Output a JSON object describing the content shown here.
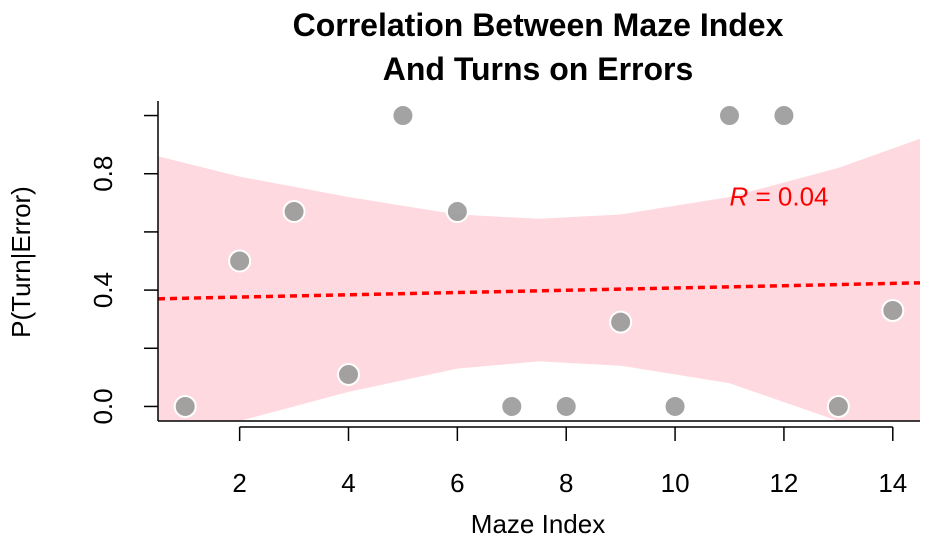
{
  "chart_data": {
    "type": "scatter",
    "title_lines": [
      "Correlation Between Maze Index",
      "And Turns on Errors"
    ],
    "xlabel": "Maze Index",
    "ylabel": "P(Turn|Error)",
    "xlim": [
      0.5,
      14.5
    ],
    "ylim": [
      -0.05,
      1.05
    ],
    "x_ticks": [
      2,
      4,
      6,
      8,
      10,
      12,
      14
    ],
    "x_tick_labels": [
      "2",
      "4",
      "6",
      "8",
      "10",
      "12",
      "14"
    ],
    "y_ticks": [
      0.0,
      0.2,
      0.4,
      0.6,
      0.8,
      1.0
    ],
    "y_labeled_ticks": [
      0.0,
      0.4,
      0.8
    ],
    "y_tick_labels": [
      "0.0",
      "0.4",
      "0.8"
    ],
    "grid": false,
    "points": [
      {
        "x": 1,
        "y": 0.0
      },
      {
        "x": 2,
        "y": 0.5
      },
      {
        "x": 3,
        "y": 0.67
      },
      {
        "x": 4,
        "y": 0.11
      },
      {
        "x": 5,
        "y": 1.0
      },
      {
        "x": 6,
        "y": 0.67
      },
      {
        "x": 7,
        "y": 0.0
      },
      {
        "x": 8,
        "y": 0.0
      },
      {
        "x": 9,
        "y": 0.29
      },
      {
        "x": 10,
        "y": 0.0
      },
      {
        "x": 11,
        "y": 1.0
      },
      {
        "x": 12,
        "y": 1.0
      },
      {
        "x": 13,
        "y": 0.0
      },
      {
        "x": 14,
        "y": 0.33
      }
    ],
    "fit_line": {
      "x": [
        0.5,
        14.5
      ],
      "y": [
        0.37,
        0.425
      ]
    },
    "confidence_band": {
      "x": [
        0.5,
        2,
        4,
        6,
        7.5,
        9,
        11,
        13,
        14.5
      ],
      "upper": [
        0.86,
        0.79,
        0.72,
        0.66,
        0.645,
        0.66,
        0.72,
        0.82,
        0.92
      ],
      "lower": [
        -0.05,
        -0.05,
        0.05,
        0.13,
        0.155,
        0.14,
        0.08,
        -0.05,
        -0.05
      ]
    },
    "annotation": {
      "var": "R",
      "text": " = 0.04",
      "x": 11.0,
      "y": 0.69
    },
    "colors": {
      "point_fill": "#999999",
      "point_stroke": "#ffffff",
      "fit_line": "#ff0000",
      "band": "#ffc0cb",
      "annotation": "#ff0000",
      "axis": "#000000"
    }
  }
}
